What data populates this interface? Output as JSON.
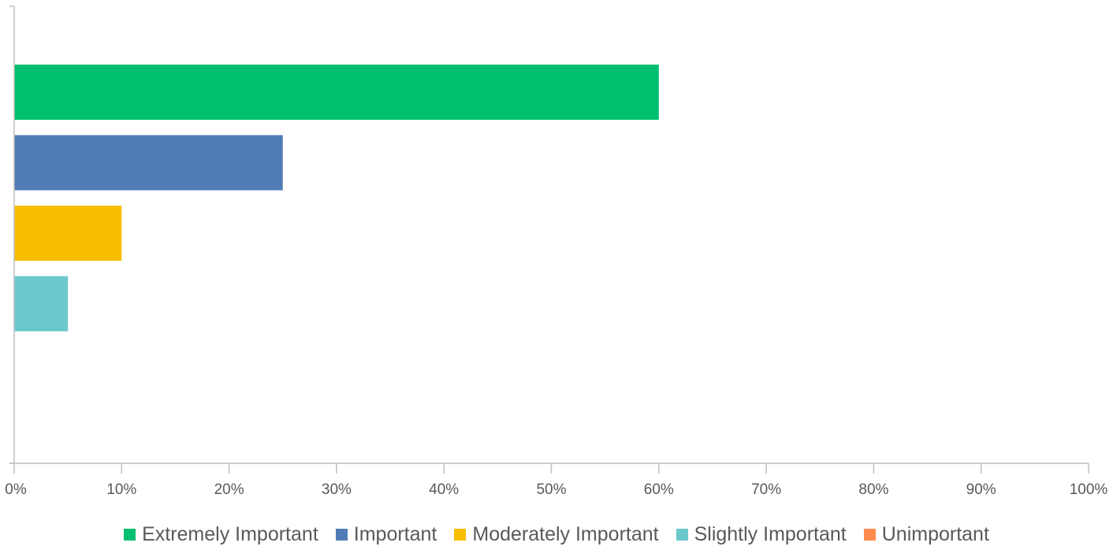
{
  "chart_data": {
    "type": "bar",
    "orientation": "horizontal",
    "title": "",
    "xlabel": "",
    "ylabel": "",
    "xlim": [
      0,
      100
    ],
    "x_ticks": [
      "0%",
      "10%",
      "20%",
      "30%",
      "40%",
      "50%",
      "60%",
      "70%",
      "80%",
      "90%",
      "100%"
    ],
    "grid": false,
    "legend_position": "bottom",
    "series": [
      {
        "name": "Extremely Important",
        "value": 60,
        "color": "#00bf6f"
      },
      {
        "name": "Important",
        "value": 25,
        "color": "#507cb6"
      },
      {
        "name": "Moderately Important",
        "value": 10,
        "color": "#f9be00"
      },
      {
        "name": "Slightly Important",
        "value": 5,
        "color": "#6bc8cd"
      },
      {
        "name": "Unimportant",
        "value": 0,
        "color": "#ff8b4f"
      }
    ]
  }
}
